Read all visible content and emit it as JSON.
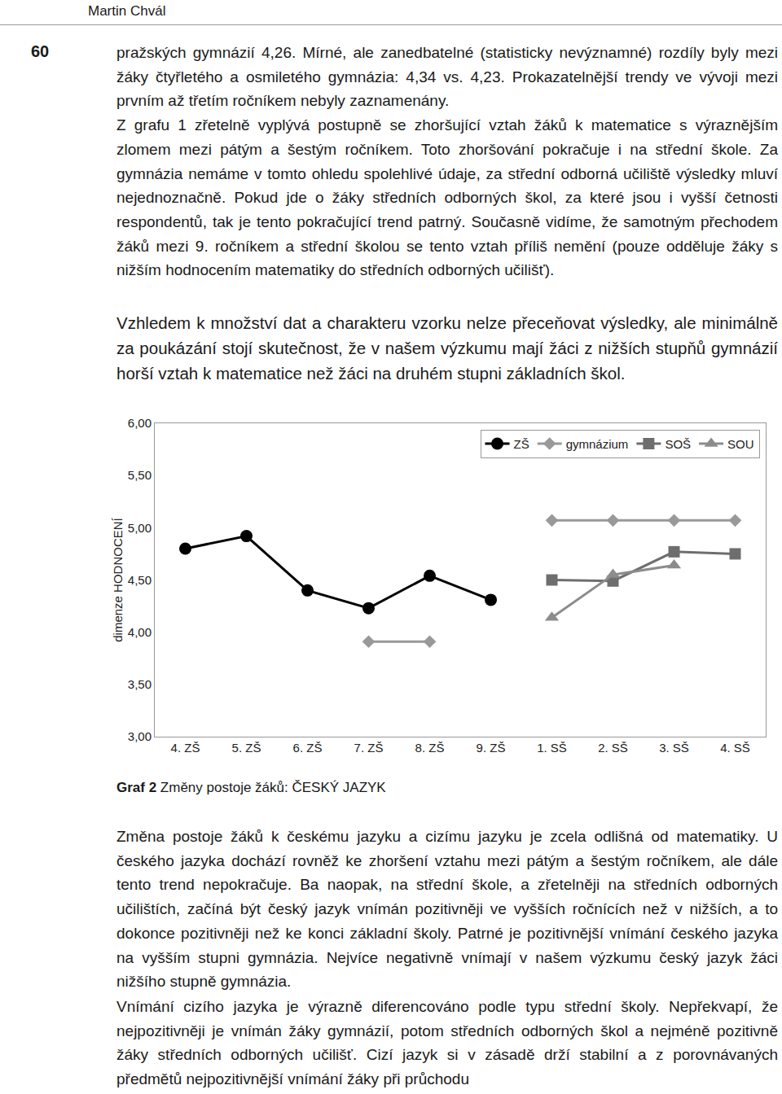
{
  "page": {
    "header": "Martin Chvál",
    "page_number": "60",
    "paragraphs_top": [
      "pražských gymnázií 4,26. Mírné, ale zanedbatelné (statisticky nevýznamné) rozdíly byly mezi žáky čtyřletého a osmiletého gymnázia: 4,34 vs. 4,23. Prokazatelnější trendy ve vývoji mezi prvním až třetím ročníkem nebyly zaznamenány.",
      "Z grafu 1 zřetelně vyplývá postupně se zhoršující vztah žáků k matematice s výraznějším zlomem mezi pátým a šestým ročníkem. Toto zhoršování pokračuje i na střední škole. Za gymnázia nemáme v tomto ohledu spolehlivé údaje, za střední odborná učiliště výsledky mluví nejednoznačně. Pokud jde o žáky středních odborných škol, za které jsou i vyšší četnosti respondentů, tak je tento pokračující trend patrný. Současně vidíme, že samotným přechodem žáků mezi 9. ročníkem a střední školou se tento vztah příliš nemění (pouze odděluje žáky s nižším hodnocením matematiky do středních odborných učilišť)."
    ],
    "paragraph_mid": "Vzhledem k množství dat a charakteru vzorku nelze přeceňovat výsledky, ale minimálně za poukázání stojí skutečnost, že v našem výzkumu mají žáci z nižších stupňů gymnázií horší vztah k matematice než žáci na druhém stupni základních škol.",
    "caption_label": "Graf 2",
    "caption_text": "Změny postoje žáků: ČESKÝ JAZYK",
    "paragraphs_bottom": [
      "Změna postoje žáků k českému jazyku a cizímu jazyku je zcela odlišná od matematiky. U českého jazyka dochází rovněž ke zhoršení vztahu mezi pátým a šestým ročníkem, ale dále tento trend nepokračuje. Ba naopak, na střední škole, a zřetelněji na středních odborných učilištích, začíná být český jazyk vnímán pozitivněji ve vyšších ročnících než v nižších, a to dokonce pozitivněji než ke konci základní školy. Patrné je pozitivnější vnímání českého jazyka na vyšším stupni gymnázia. Nejvíce negativně vnímají v našem výzkumu český jazyk žáci nižšího stupně gymnázia.",
      "Vnímání cizího jazyka je výrazně diferencováno podle typu střední školy. Nepřekvapí, že nejpozitivněji je vnímán žáky gymnázií, potom středních odborných škol a nejméně pozitivně žáky středních odborných učilišť. Cizí jazyk si v zásadě drží stabilní a z porovnávaných předmětů nejpozitivnější vnímání žáky při průchodu"
    ]
  },
  "chart_data": {
    "type": "line",
    "y_label": "dimenze HODNOCENÍ",
    "categories": [
      "4. ZŠ",
      "5. ZŠ",
      "6. ZŠ",
      "7. ZŠ",
      "8. ZŠ",
      "9. ZŠ",
      "1. SŠ",
      "2. SŠ",
      "3. SŠ",
      "4. SŠ"
    ],
    "series": [
      {
        "name": "ZŠ",
        "color": "#000000",
        "marker": "circle",
        "line_style": "solid",
        "values": [
          4.8,
          4.92,
          4.4,
          4.23,
          4.54,
          4.31,
          null,
          null,
          null,
          null
        ]
      },
      {
        "name": "gymnázium",
        "color": "#999999",
        "marker": "diamond",
        "line_style": "solid",
        "values": [
          null,
          null,
          null,
          3.91,
          3.91,
          null,
          5.07,
          5.07,
          5.07,
          5.07
        ]
      },
      {
        "name": "SOŠ",
        "color": "#6e6e6e",
        "marker": "square",
        "line_style": "solid",
        "values": [
          null,
          null,
          null,
          null,
          null,
          null,
          4.5,
          4.49,
          4.77,
          4.75
        ]
      },
      {
        "name": "SOU",
        "color": "#8c8c8c",
        "marker": "triangle-up",
        "line_style": "solid",
        "values": [
          null,
          null,
          null,
          null,
          null,
          null,
          4.14,
          4.55,
          4.64,
          null
        ]
      }
    ],
    "ylim": [
      3,
      6
    ],
    "yticks": [
      {
        "value": 3,
        "label": "3,00"
      },
      {
        "value": 3.5,
        "label": "3,50"
      },
      {
        "value": 4,
        "label": "4,00"
      },
      {
        "value": 4.5,
        "label": "4,50"
      },
      {
        "value": 5,
        "label": "5,00"
      },
      {
        "value": 5.5,
        "label": "5,50"
      },
      {
        "value": 6,
        "label": "6,00"
      }
    ],
    "grid": false,
    "legend": "top-right"
  }
}
